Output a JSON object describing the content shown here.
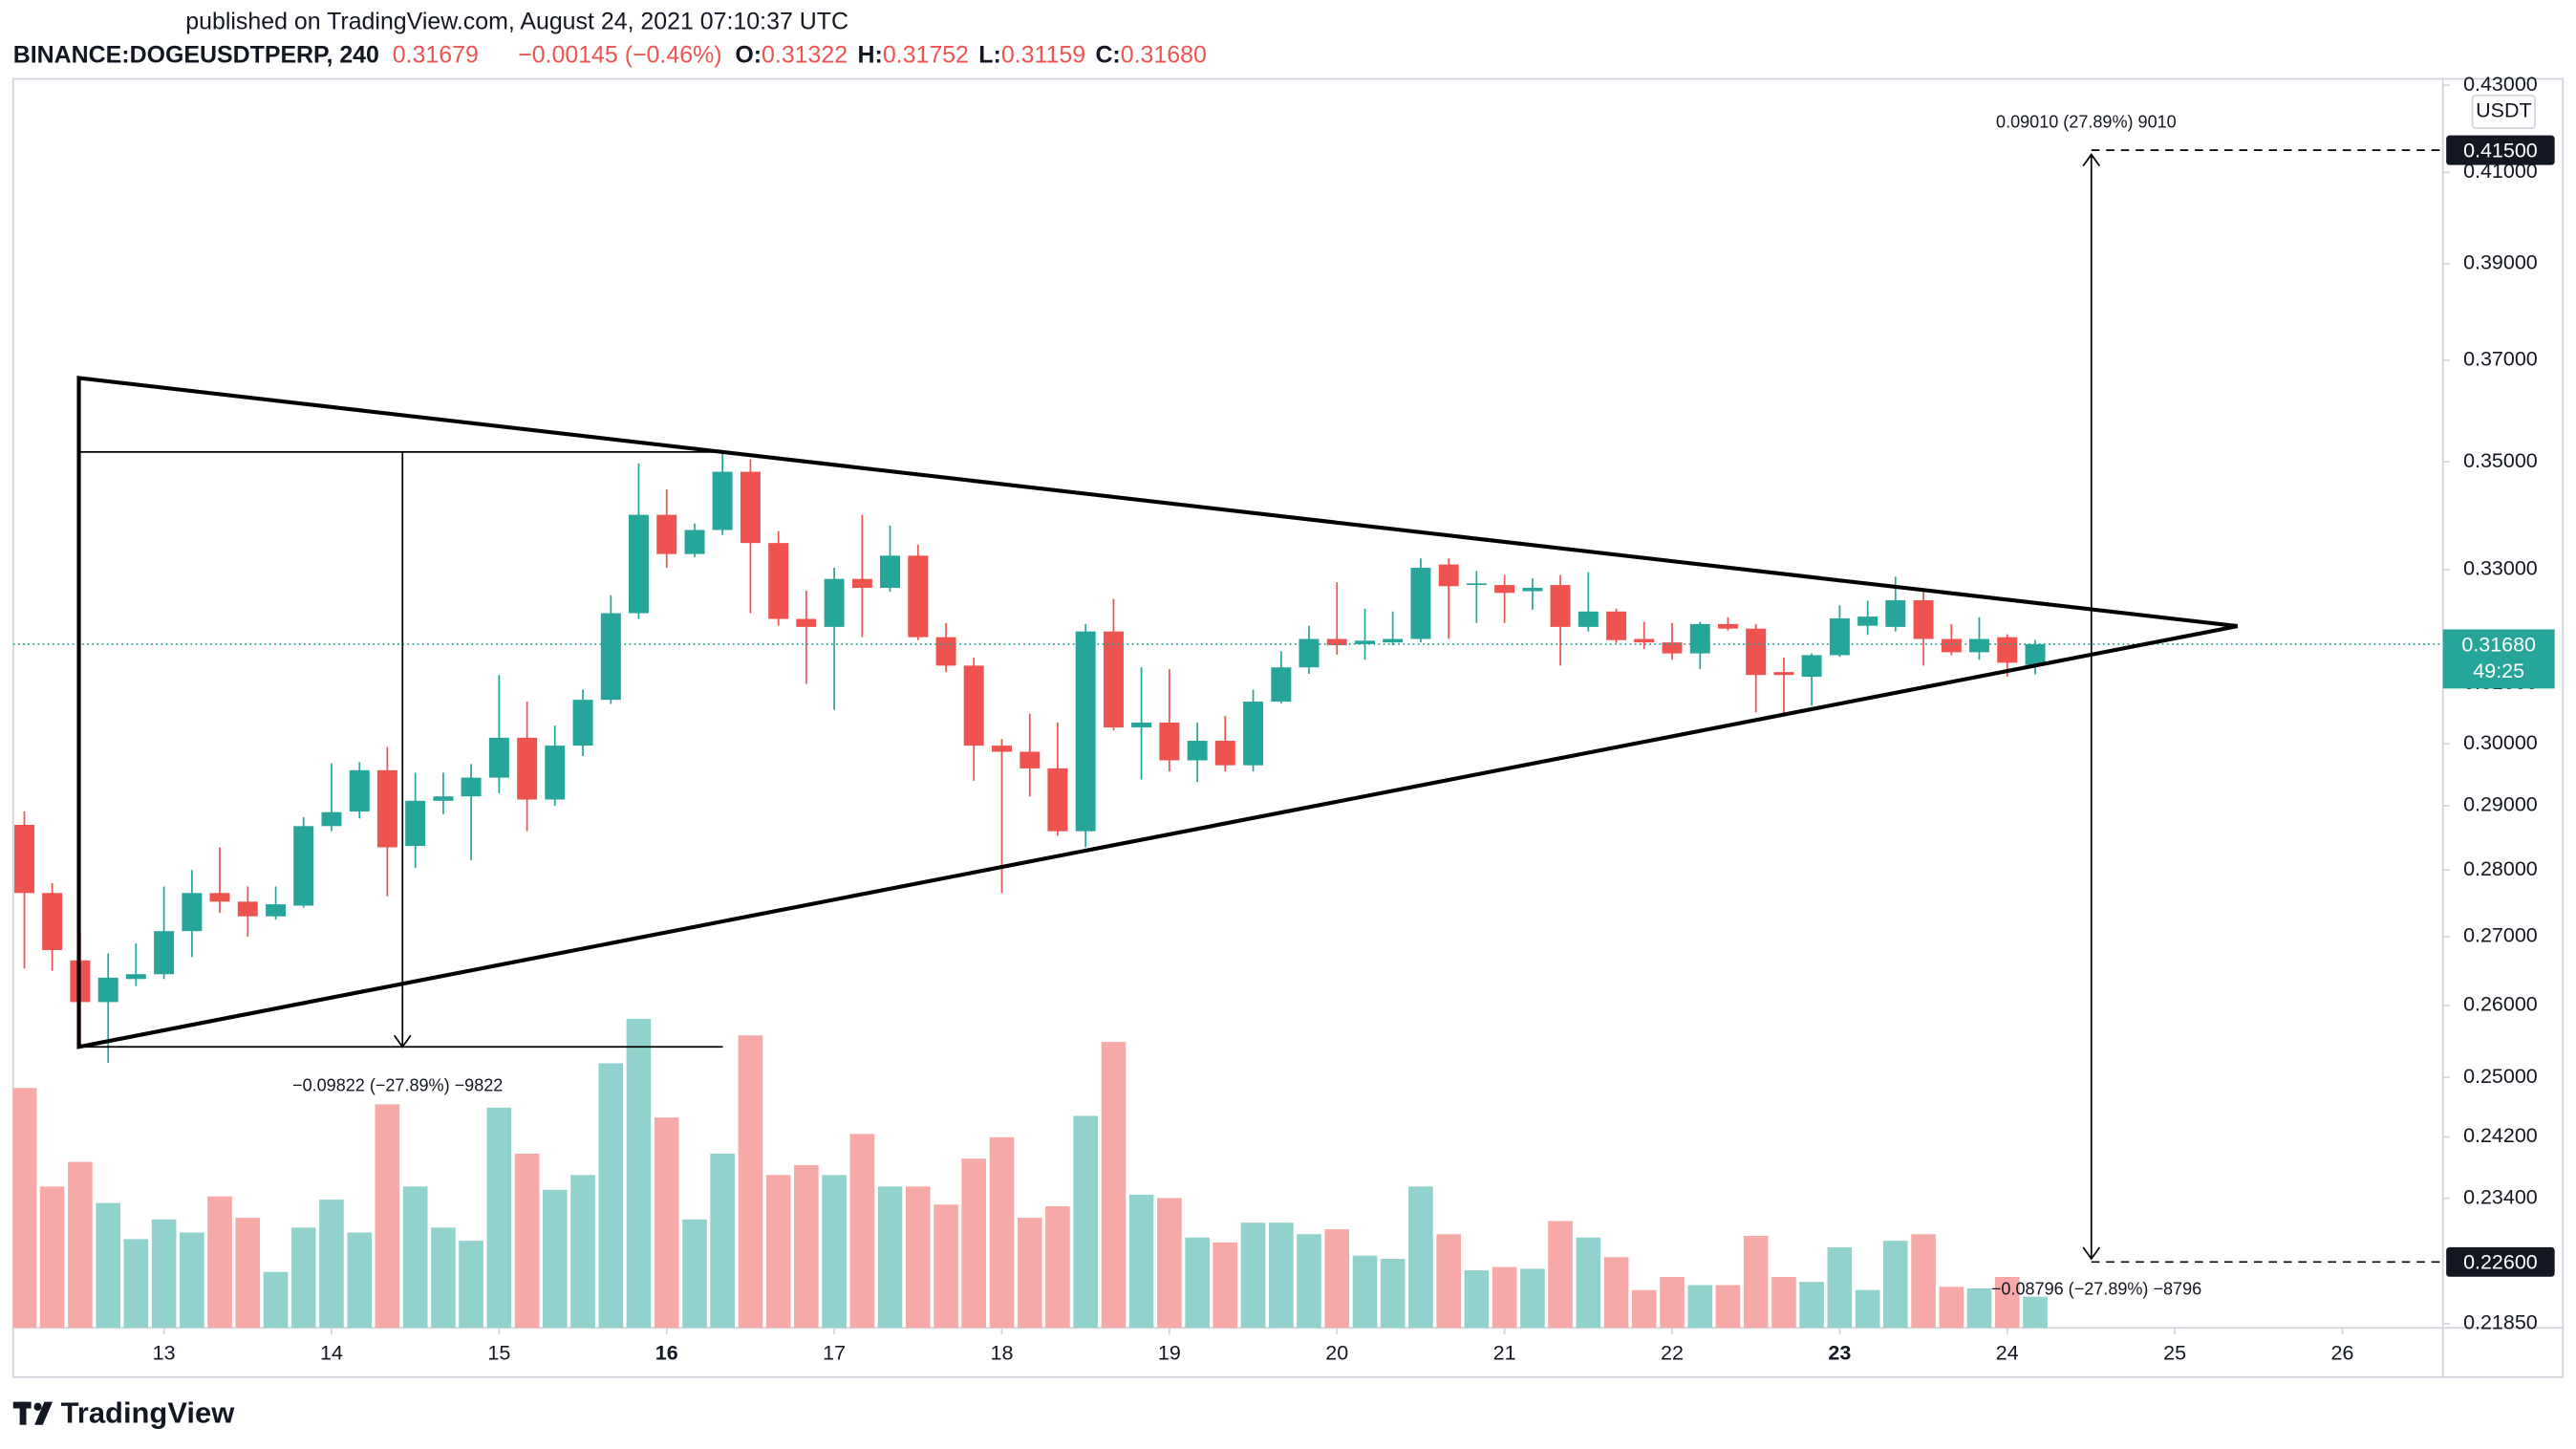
{
  "header": {
    "published": "published on TradingView.com, August 24, 2021 07:10:37 UTC",
    "symbol": "BINANCE:DOGEUSDTPERP, 240",
    "price": "0.31679",
    "change": "−0.00145 (−0.46%)",
    "ohlc": [
      {
        "key": "O:",
        "value": "0.31322"
      },
      {
        "key": "H:",
        "value": "0.31752"
      },
      {
        "key": "L:",
        "value": "0.31159"
      },
      {
        "key": "C:",
        "value": "0.31680"
      }
    ]
  },
  "chart_data": {
    "type": "candlestick",
    "log_scale": true,
    "grid": false,
    "unit": "USDT",
    "up_color": "#26a69a",
    "down_color": "#ef5350",
    "volume_up_color": "#92d2cc",
    "volume_down_color": "#f7a9a7",
    "xlim": [
      12.1,
      26.6
    ],
    "xticks": [
      13,
      14,
      15,
      16,
      17,
      18,
      19,
      20,
      21,
      22,
      23,
      24,
      25,
      26
    ],
    "ylim": [
      0.218,
      0.4315
    ],
    "yticks": [
      {
        "value": 0.43,
        "label": "0.43000"
      },
      {
        "value": 0.41,
        "label": "0.41000"
      },
      {
        "value": 0.39,
        "label": "0.39000"
      },
      {
        "value": 0.37,
        "label": "0.37000"
      },
      {
        "value": 0.35,
        "label": "0.35000"
      },
      {
        "value": 0.33,
        "label": "0.33000"
      },
      {
        "value": 0.31,
        "label": "0.31000"
      },
      {
        "value": 0.3,
        "label": "0.30000"
      },
      {
        "value": 0.29,
        "label": "0.29000"
      },
      {
        "value": 0.28,
        "label": "0.28000"
      },
      {
        "value": 0.27,
        "label": "0.27000"
      },
      {
        "value": 0.26,
        "label": "0.26000"
      },
      {
        "value": 0.25,
        "label": "0.25000"
      },
      {
        "value": 0.242,
        "label": "0.24200"
      },
      {
        "value": 0.234,
        "label": "0.23400"
      },
      {
        "value": 0.2185,
        "label": "0.21850"
      }
    ],
    "volume_lim": [
      0,
      250
    ],
    "x": [
      12.167,
      12.333,
      12.5,
      12.667,
      12.833,
      13,
      13.167,
      13.333,
      13.5,
      13.667,
      13.833,
      14,
      14.167,
      14.333,
      14.5,
      14.667,
      14.833,
      15,
      15.167,
      15.333,
      15.5,
      15.667,
      15.833,
      16,
      16.167,
      16.333,
      16.5,
      16.667,
      16.833,
      17,
      17.167,
      17.333,
      17.5,
      17.667,
      17.833,
      18,
      18.167,
      18.333,
      18.5,
      18.667,
      18.833,
      19,
      19.167,
      19.333,
      19.5,
      19.667,
      19.833,
      20,
      20.167,
      20.333,
      20.5,
      20.667,
      20.833,
      21,
      21.167,
      21.333,
      21.5,
      21.667,
      21.833,
      22,
      22.167,
      22.333,
      22.5,
      22.667,
      22.833,
      23,
      23.167,
      23.333,
      23.5,
      23.667,
      23.833,
      24,
      24.167
    ],
    "open": [
      0.287,
      0.2765,
      0.2665,
      0.2605,
      0.2638,
      0.2645,
      0.2708,
      0.2765,
      0.2752,
      0.273,
      0.2746,
      0.2868,
      0.2891,
      0.2957,
      0.2837,
      0.2908,
      0.2915,
      0.2945,
      0.301,
      0.291,
      0.2997,
      0.3073,
      0.3222,
      0.34,
      0.3328,
      0.3372,
      0.3481,
      0.3348,
      0.3212,
      0.3198,
      0.3283,
      0.3267,
      0.3325,
      0.318,
      0.3131,
      0.2997,
      0.2987,
      0.296,
      0.286,
      0.319,
      0.3027,
      0.3035,
      0.2973,
      0.3005,
      0.2965,
      0.307,
      0.3128,
      0.3177,
      0.3168,
      0.3171,
      0.3177,
      0.3309,
      0.3272,
      0.3272,
      0.3261,
      0.3272,
      0.3198,
      0.3225,
      0.3177,
      0.3171,
      0.3152,
      0.3203,
      0.3195,
      0.312,
      0.3112,
      0.3149,
      0.32,
      0.3198,
      0.3245,
      0.3177,
      0.3154,
      0.318,
      0.31322
    ],
    "high": [
      0.2891,
      0.278,
      0.2705,
      0.2675,
      0.269,
      0.2775,
      0.28,
      0.2835,
      0.2775,
      0.2775,
      0.2882,
      0.2968,
      0.297,
      0.2995,
      0.2953,
      0.2953,
      0.2967,
      0.3115,
      0.307,
      0.303,
      0.309,
      0.3254,
      0.3497,
      0.3448,
      0.3384,
      0.352,
      0.3505,
      0.337,
      0.3262,
      0.3303,
      0.34,
      0.338,
      0.3345,
      0.3205,
      0.3145,
      0.3008,
      0.305,
      0.3035,
      0.3203,
      0.3247,
      0.3128,
      0.3125,
      0.3035,
      0.3046,
      0.309,
      0.3156,
      0.32,
      0.3277,
      0.323,
      0.3225,
      0.332,
      0.332,
      0.3297,
      0.329,
      0.3284,
      0.329,
      0.3295,
      0.323,
      0.3207,
      0.3205,
      0.3207,
      0.3215,
      0.3203,
      0.3145,
      0.3152,
      0.3236,
      0.3244,
      0.3287,
      0.3266,
      0.3203,
      0.3215,
      0.3185,
      0.31752
    ],
    "low": [
      0.2653,
      0.265,
      0.2545,
      0.252,
      0.2628,
      0.2638,
      0.267,
      0.2735,
      0.27,
      0.2725,
      0.2743,
      0.286,
      0.288,
      0.276,
      0.2803,
      0.2887,
      0.2815,
      0.292,
      0.286,
      0.29,
      0.298,
      0.3066,
      0.3212,
      0.3303,
      0.3322,
      0.3363,
      0.3222,
      0.32,
      0.31,
      0.3056,
      0.318,
      0.326,
      0.3175,
      0.312,
      0.294,
      0.2765,
      0.2915,
      0.2853,
      0.2835,
      0.3022,
      0.2942,
      0.2955,
      0.2938,
      0.2955,
      0.2955,
      0.3067,
      0.3117,
      0.315,
      0.3141,
      0.3166,
      0.3171,
      0.3177,
      0.3205,
      0.3205,
      0.3228,
      0.3131,
      0.319,
      0.317,
      0.316,
      0.3141,
      0.3125,
      0.3192,
      0.3052,
      0.3047,
      0.3063,
      0.3146,
      0.3184,
      0.319,
      0.3131,
      0.3149,
      0.3141,
      0.3112,
      0.31159
    ],
    "close": [
      0.2765,
      0.268,
      0.2605,
      0.264,
      0.2645,
      0.2708,
      0.2765,
      0.2752,
      0.273,
      0.2748,
      0.2868,
      0.289,
      0.2957,
      0.2835,
      0.2908,
      0.2915,
      0.2945,
      0.301,
      0.291,
      0.2997,
      0.3073,
      0.3222,
      0.34,
      0.3328,
      0.3372,
      0.3481,
      0.3348,
      0.3212,
      0.3198,
      0.3283,
      0.3267,
      0.3325,
      0.318,
      0.3131,
      0.2997,
      0.2987,
      0.296,
      0.286,
      0.319,
      0.3027,
      0.3035,
      0.2973,
      0.3005,
      0.2965,
      0.307,
      0.3128,
      0.3177,
      0.3166,
      0.3174,
      0.3177,
      0.3303,
      0.327,
      0.3275,
      0.3258,
      0.3267,
      0.3198,
      0.3225,
      0.3175,
      0.3171,
      0.3152,
      0.3203,
      0.3195,
      0.3115,
      0.3115,
      0.3149,
      0.3213,
      0.3216,
      0.3245,
      0.3177,
      0.3154,
      0.3177,
      0.3136,
      0.3168
    ],
    "volume": [
      146,
      86,
      101,
      76,
      54,
      66,
      58,
      80,
      67,
      34,
      61,
      78,
      58,
      136,
      86,
      61,
      53,
      134,
      106,
      84,
      93,
      161,
      188,
      128,
      66,
      106,
      178,
      93,
      99,
      93,
      118,
      86,
      86,
      75,
      103,
      116,
      67,
      74,
      129,
      174,
      81,
      79,
      55,
      52,
      64,
      64,
      57,
      60,
      44,
      42,
      86,
      57,
      35,
      37,
      36,
      65,
      55,
      43,
      23,
      31,
      26,
      26,
      56,
      31,
      28,
      49,
      23,
      53,
      57,
      25,
      24,
      31,
      19
    ],
    "last_price": {
      "value": 0.3168,
      "label": "0.31680"
    },
    "countdown": "49:25",
    "price_labels": [
      {
        "value": 0.415,
        "label": "0.41500"
      },
      {
        "value": 0.226,
        "label": "0.22600"
      }
    ],
    "annotations": [
      "−0.09822 (−27.89%) −9822",
      "0.09010 (27.89%) 9010",
      "−0.08796 (−27.89%) −8796"
    ]
  },
  "footer": {
    "brand": "TradingView"
  }
}
